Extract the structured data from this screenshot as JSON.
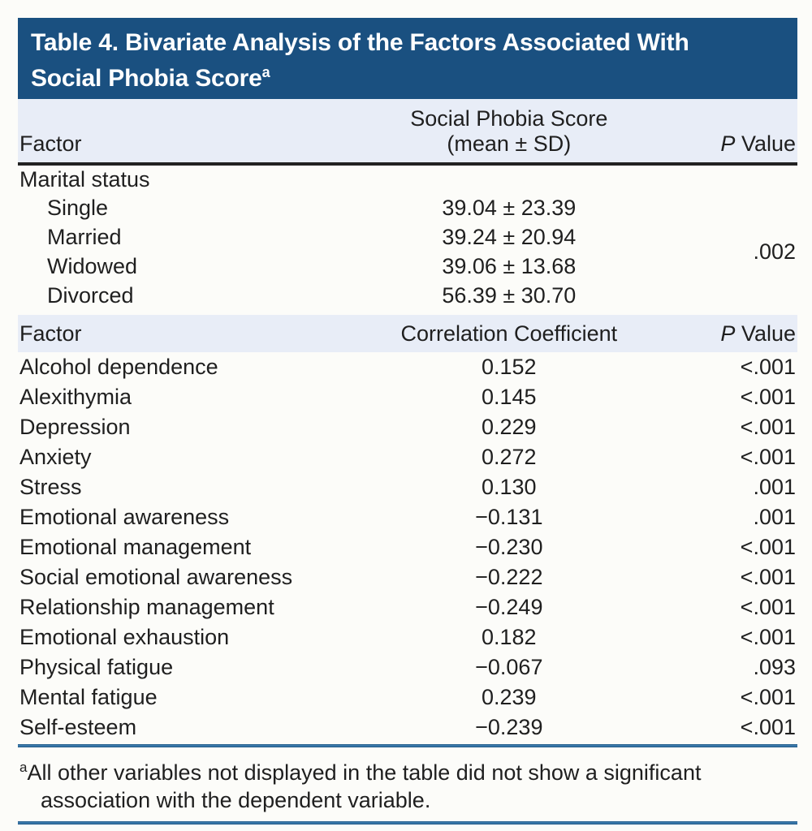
{
  "title": {
    "line1": "Table 4. Bivariate Analysis of the Factors Associated With",
    "line2": "Social Phobia Score",
    "sup": "a"
  },
  "colors": {
    "banner_bg": "#1a5080",
    "band_bg": "#e8edf7",
    "heavy_rule": "#222222",
    "blue_rule": "#2c6ea7",
    "text": "#1f1f1f",
    "title_text": "#ffffff"
  },
  "section_marital": {
    "header": {
      "factor": "Factor",
      "score_line1": "Social Phobia Score",
      "score_line2": "(mean ± SD)",
      "p_italic": "P",
      "p_rest": " Value"
    },
    "group_label": "Marital status",
    "rows": [
      {
        "label": "Single",
        "value": "39.04 ± 23.39"
      },
      {
        "label": "Married",
        "value": "39.24 ± 20.94"
      },
      {
        "label": "Widowed",
        "value": "39.06 ± 13.68"
      },
      {
        "label": "Divorced",
        "value": "56.39 ± 30.70"
      }
    ],
    "p_value": ".002"
  },
  "section_correlation": {
    "header": {
      "factor": "Factor",
      "coefficient": "Correlation Coefficient",
      "p_italic": "P",
      "p_rest": " Value"
    },
    "rows": [
      {
        "label": "Alcohol dependence",
        "value": "0.152",
        "p": "<.001"
      },
      {
        "label": "Alexithymia",
        "value": "0.145",
        "p": "<.001"
      },
      {
        "label": "Depression",
        "value": "0.229",
        "p": "<.001"
      },
      {
        "label": "Anxiety",
        "value": "0.272",
        "p": "<.001"
      },
      {
        "label": "Stress",
        "value": "0.130",
        "p": ".001"
      },
      {
        "label": "Emotional awareness",
        "value": "−0.131",
        "p": ".001"
      },
      {
        "label": "Emotional management",
        "value": "−0.230",
        "p": "<.001"
      },
      {
        "label": "Social emotional awareness",
        "value": "−0.222",
        "p": "<.001"
      },
      {
        "label": "Relationship management",
        "value": "−0.249",
        "p": "<.001"
      },
      {
        "label": "Emotional exhaustion",
        "value": "0.182",
        "p": "<.001"
      },
      {
        "label": "Physical fatigue",
        "value": "−0.067",
        "p": ".093"
      },
      {
        "label": "Mental fatigue",
        "value": "0.239",
        "p": "<.001"
      },
      {
        "label": "Self-esteem",
        "value": "−0.239",
        "p": "<.001"
      }
    ]
  },
  "footnote": {
    "sup": "a",
    "line1": "All other variables not displayed in the table did not show a significant",
    "line2": "association with the dependent variable."
  }
}
